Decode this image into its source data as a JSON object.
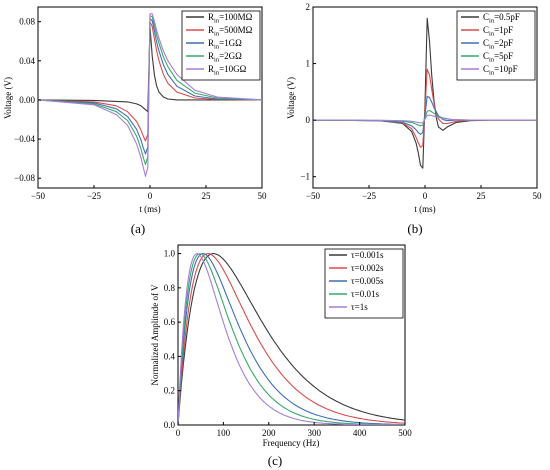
{
  "figure": {
    "panel_labels": [
      "(a)",
      "(b)",
      "(c)"
    ]
  },
  "chart_data": [
    {
      "type": "line",
      "panel": "(a)",
      "xlabel": "t (ms)",
      "ylabel": "Voltage (V)",
      "xlim": [
        -50,
        50
      ],
      "ylim": [
        -0.09,
        0.095
      ],
      "xticks": [
        -50,
        -25,
        0,
        25,
        50
      ],
      "xtick_labels": [
        "−50",
        "−25",
        "0",
        "25",
        "50"
      ],
      "yticks": [
        -0.08,
        -0.04,
        0.0,
        0.04,
        0.08
      ],
      "ytick_labels": [
        "−0.08",
        "−0.04",
        "0.00",
        "0.04",
        "0.08"
      ],
      "legend_position": "top-right",
      "series": [
        {
          "label_main": "R",
          "label_sub": "in",
          "label_rest": "=100MΩ",
          "color": "#3a3a3a",
          "x": [
            -50,
            -25,
            -10,
            -6,
            -4,
            -3,
            -2,
            -1,
            0,
            1,
            2,
            3,
            4,
            6,
            8,
            12,
            20,
            30,
            50
          ],
          "y": [
            0,
            -0.0005,
            -0.002,
            -0.004,
            -0.006,
            -0.008,
            -0.01,
            -0.012,
            0.075,
            0.045,
            0.025,
            0.014,
            0.008,
            0.003,
            0.001,
            0,
            0,
            0,
            0
          ]
        },
        {
          "label_main": "R",
          "label_sub": "in",
          "label_rest": "=500MΩ",
          "color": "#d94c4c",
          "x": [
            -50,
            -25,
            -15,
            -10,
            -6,
            -4,
            -3,
            -2,
            -1,
            0,
            1,
            2,
            3,
            4,
            6,
            8,
            12,
            20,
            30,
            50
          ],
          "y": [
            0,
            -0.002,
            -0.006,
            -0.012,
            -0.022,
            -0.031,
            -0.037,
            -0.042,
            -0.035,
            0.08,
            0.075,
            0.062,
            0.05,
            0.04,
            0.026,
            0.017,
            0.008,
            0.002,
            0.0005,
            0
          ]
        },
        {
          "label_main": "R",
          "label_sub": "in",
          "label_rest": "=1GΩ",
          "color": "#3f6fb5",
          "x": [
            -50,
            -25,
            -15,
            -10,
            -6,
            -4,
            -3,
            -2,
            -1,
            0,
            1,
            2,
            3,
            4,
            6,
            8,
            12,
            20,
            30,
            50
          ],
          "y": [
            0,
            -0.003,
            -0.009,
            -0.017,
            -0.03,
            -0.041,
            -0.049,
            -0.055,
            -0.048,
            0.083,
            0.081,
            0.07,
            0.059,
            0.05,
            0.036,
            0.026,
            0.014,
            0.004,
            0.001,
            0
          ]
        },
        {
          "label_main": "R",
          "label_sub": "in",
          "label_rest": "=2GΩ",
          "color": "#3aa86b",
          "x": [
            -50,
            -25,
            -15,
            -10,
            -6,
            -4,
            -3,
            -2,
            -1,
            0,
            1,
            2,
            3,
            4,
            6,
            8,
            12,
            20,
            30,
            50
          ],
          "y": [
            0,
            -0.004,
            -0.012,
            -0.021,
            -0.037,
            -0.05,
            -0.059,
            -0.066,
            -0.058,
            0.086,
            0.085,
            0.076,
            0.066,
            0.058,
            0.044,
            0.034,
            0.02,
            0.007,
            0.002,
            0
          ]
        },
        {
          "label_main": "R",
          "label_sub": "in",
          "label_rest": "=10GΩ",
          "color": "#a57fd6",
          "x": [
            -50,
            -25,
            -15,
            -10,
            -6,
            -4,
            -3,
            -2,
            -1,
            0,
            1,
            2,
            3,
            4,
            6,
            8,
            12,
            20,
            30,
            50
          ],
          "y": [
            0,
            -0.005,
            -0.015,
            -0.026,
            -0.045,
            -0.059,
            -0.069,
            -0.078,
            -0.069,
            0.088,
            0.088,
            0.08,
            0.071,
            0.063,
            0.05,
            0.04,
            0.026,
            0.01,
            0.003,
            0
          ]
        }
      ]
    },
    {
      "type": "line",
      "panel": "(b)",
      "xlabel": "t (ms)",
      "ylabel": "Voltage (V)",
      "xlim": [
        -50,
        50
      ],
      "ylim": [
        -1.2,
        2.0
      ],
      "xticks": [
        -50,
        -25,
        0,
        25,
        50
      ],
      "xtick_labels": [
        "−50",
        "−25",
        "0",
        "25",
        "50"
      ],
      "yticks": [
        -1,
        0,
        1,
        2
      ],
      "ytick_labels": [
        "−1",
        "0",
        "1",
        "2"
      ],
      "legend_position": "top-right",
      "series": [
        {
          "label_main": "C",
          "label_sub": "in",
          "label_rest": "=0.5pF",
          "color": "#3a3a3a",
          "x": [
            -50,
            -20,
            -10,
            -6,
            -4,
            -3,
            -2,
            -1,
            0,
            1,
            2,
            3,
            4,
            5,
            6,
            8,
            10,
            14,
            20,
            30,
            50
          ],
          "y": [
            0,
            -0.01,
            -0.06,
            -0.2,
            -0.4,
            -0.58,
            -0.8,
            -0.85,
            0.3,
            1.8,
            1.4,
            0.8,
            0.35,
            0.05,
            -0.12,
            -0.18,
            -0.12,
            -0.04,
            -0.01,
            0,
            0
          ]
        },
        {
          "label_main": "C",
          "label_sub": "in",
          "label_rest": "=1pF",
          "color": "#d94c4c",
          "x": [
            -50,
            -20,
            -10,
            -6,
            -4,
            -3,
            -2,
            -1,
            0,
            1,
            2,
            3,
            4,
            5,
            6,
            8,
            10,
            14,
            20,
            30,
            50
          ],
          "y": [
            0,
            -0.01,
            -0.05,
            -0.15,
            -0.3,
            -0.4,
            -0.48,
            -0.45,
            0.2,
            0.9,
            0.8,
            0.55,
            0.3,
            0.12,
            0.02,
            -0.06,
            -0.06,
            -0.02,
            0,
            0,
            0
          ]
        },
        {
          "label_main": "C",
          "label_sub": "in",
          "label_rest": "=2pF",
          "color": "#3f6fb5",
          "x": [
            -50,
            -20,
            -10,
            -6,
            -4,
            -3,
            -2,
            -1,
            0,
            1,
            2,
            3,
            4,
            6,
            8,
            10,
            14,
            20,
            30,
            50
          ],
          "y": [
            0,
            -0.01,
            -0.04,
            -0.1,
            -0.17,
            -0.22,
            -0.25,
            -0.22,
            0.1,
            0.42,
            0.4,
            0.32,
            0.22,
            0.08,
            0.01,
            -0.01,
            0,
            0,
            0,
            0
          ]
        },
        {
          "label_main": "C",
          "label_sub": "in",
          "label_rest": "=5pF",
          "color": "#3aa86b",
          "x": [
            -50,
            -20,
            -10,
            -6,
            -4,
            -2,
            -1,
            0,
            1,
            2,
            4,
            6,
            8,
            12,
            20,
            30,
            50
          ],
          "y": [
            0,
            -0.005,
            -0.02,
            -0.04,
            -0.07,
            -0.1,
            -0.09,
            0.04,
            0.16,
            0.17,
            0.12,
            0.07,
            0.04,
            0.01,
            0,
            0,
            0
          ]
        },
        {
          "label_main": "C",
          "label_sub": "in",
          "label_rest": "=10pF",
          "color": "#a57fd6",
          "x": [
            -50,
            -20,
            -10,
            -6,
            -4,
            -2,
            -1,
            0,
            1,
            2,
            4,
            6,
            8,
            12,
            20,
            30,
            50
          ],
          "y": [
            0,
            -0.003,
            -0.01,
            -0.02,
            -0.035,
            -0.05,
            -0.045,
            0.02,
            0.08,
            0.09,
            0.07,
            0.05,
            0.03,
            0.01,
            0,
            0,
            0
          ]
        }
      ]
    },
    {
      "type": "line",
      "panel": "(c)",
      "xlabel": "Frequency (Hz)",
      "ylabel": "Normalized Amplitude of  V",
      "xlim": [
        0,
        500
      ],
      "ylim": [
        0,
        1.05
      ],
      "xticks": [
        0,
        100,
        200,
        300,
        400,
        500
      ],
      "xtick_labels": [
        "0",
        "100",
        "200",
        "300",
        "400",
        "500"
      ],
      "yticks": [
        0,
        0.2,
        0.4,
        0.6,
        0.8,
        1.0
      ],
      "ytick_labels": [
        "0.0",
        "0.2",
        "0.4",
        "0.6",
        "0.8",
        "1.0"
      ],
      "legend_position": "top-right",
      "series": [
        {
          "label_main": "τ=0.001s",
          "color": "#3a3a3a",
          "peak": 78
        },
        {
          "label_main": "τ=0.002s",
          "color": "#d94c4c",
          "peak": 66
        },
        {
          "label_main": "τ=0.005s",
          "color": "#3f6fb5",
          "peak": 55
        },
        {
          "label_main": "τ=0.01s",
          "color": "#3aa86b",
          "peak": 48
        },
        {
          "label_main": "τ=1s",
          "color": "#a57fd6",
          "peak": 42
        }
      ]
    }
  ]
}
